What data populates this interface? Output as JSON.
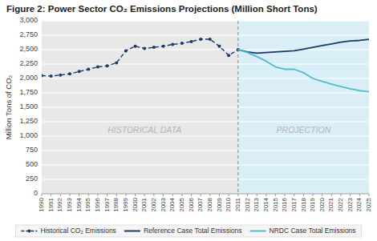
{
  "chart_data": {
    "type": "line",
    "title": "Figure 2: Power Sector CO₂ Emissions Projections (Million Short Tons)",
    "y_label": "Million Tons of CO₂",
    "x": [
      1990,
      1991,
      1992,
      1993,
      1994,
      1995,
      1996,
      1997,
      1998,
      1999,
      2000,
      2001,
      2002,
      2003,
      2004,
      2005,
      2006,
      2007,
      2008,
      2009,
      2010,
      2011,
      2012,
      2013,
      2014,
      2015,
      2016,
      2017,
      2018,
      2019,
      2020,
      2021,
      2022,
      2023,
      2024,
      2025
    ],
    "series": [
      {
        "name": "Historical CO₂ Emissions",
        "color": "#1a3a6b",
        "line_style": "dashed",
        "marker": "circle",
        "values": [
          2050,
          2040,
          2060,
          2080,
          2120,
          2160,
          2200,
          2220,
          2270,
          2480,
          2560,
          2520,
          2540,
          2560,
          2590,
          2610,
          2640,
          2680,
          2680,
          2560,
          2400,
          2500,
          null,
          null,
          null,
          null,
          null,
          null,
          null,
          null,
          null,
          null,
          null,
          null,
          null,
          null
        ]
      },
      {
        "name": "Reference Case Total Emissions",
        "color": "#1a3a6b",
        "line_style": "solid",
        "values": [
          null,
          null,
          null,
          null,
          null,
          null,
          null,
          null,
          null,
          null,
          null,
          null,
          null,
          null,
          null,
          null,
          null,
          null,
          null,
          null,
          null,
          2500,
          2460,
          2440,
          2450,
          2460,
          2470,
          2480,
          2510,
          2540,
          2570,
          2600,
          2630,
          2650,
          2660,
          2680
        ]
      },
      {
        "name": "NRDC Case Total Emissions",
        "color": "#4bbcd4",
        "line_style": "solid",
        "values": [
          null,
          null,
          null,
          null,
          null,
          null,
          null,
          null,
          null,
          null,
          null,
          null,
          null,
          null,
          null,
          null,
          null,
          null,
          null,
          null,
          null,
          2500,
          2450,
          2380,
          2300,
          2200,
          2160,
          2160,
          2100,
          2000,
          1950,
          1900,
          1860,
          1820,
          1790,
          1770
        ]
      }
    ],
    "xlim": [
      1990,
      2025
    ],
    "xticks": [
      1990,
      1991,
      1992,
      1993,
      1994,
      1995,
      1996,
      1997,
      1998,
      1999,
      2000,
      2001,
      2002,
      2003,
      2004,
      2005,
      2006,
      2007,
      2008,
      2009,
      2010,
      2011,
      2012,
      2013,
      2014,
      2015,
      2016,
      2017,
      2018,
      2019,
      2020,
      2021,
      2022,
      2023,
      2024,
      2025
    ],
    "ylim": [
      0,
      3000
    ],
    "yticks": [
      0,
      250,
      500,
      750,
      {
        "value": 1000,
        "label": "1,000"
      },
      {
        "value": 1250,
        "label": "1,250"
      },
      {
        "value": 1500,
        "label": "1,500"
      },
      {
        "value": 1750,
        "label": "1,750"
      },
      {
        "value": 2000,
        "label": "2,000"
      },
      {
        "value": 2250,
        "label": "2,250"
      },
      {
        "value": 2500,
        "label": "2,500"
      },
      {
        "value": 2750,
        "label": "2,750"
      },
      {
        "value": 3000,
        "label": "3,000"
      }
    ],
    "regions": [
      {
        "from": 1990,
        "to": 2011,
        "color": "#e8e8e8"
      },
      {
        "from": 2011,
        "to": 2025,
        "color": "#daeef7"
      }
    ],
    "vline_x": 2011,
    "annotations": [
      {
        "text": "HISTORICAL DATA",
        "x": 2001,
        "y": 1100
      },
      {
        "text": "PROJECTION",
        "x": 2018,
        "y": 1100
      }
    ],
    "grid": true,
    "legend": "bottom"
  }
}
